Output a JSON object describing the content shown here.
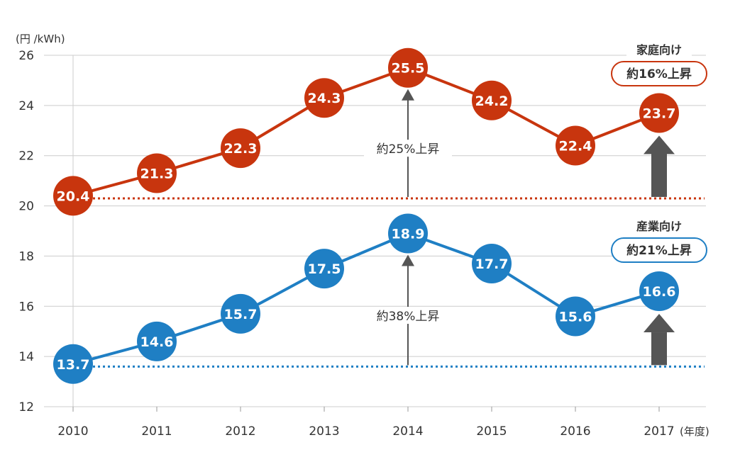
{
  "chart_data": {
    "type": "line",
    "unit_label": "(円 /kWh)",
    "x_unit_label": "(年度)",
    "categories": [
      "2010",
      "2011",
      "2012",
      "2013",
      "2014",
      "2015",
      "2016",
      "2017"
    ],
    "ylim": [
      12,
      26
    ],
    "yticks": [
      12,
      14,
      16,
      18,
      20,
      22,
      24,
      26
    ],
    "grid": true,
    "series": [
      {
        "name": "家庭向け",
        "color": "#c8350e",
        "values": [
          20.4,
          21.3,
          22.3,
          24.3,
          25.5,
          24.2,
          22.4,
          23.7
        ],
        "baseline": 20.3,
        "badge": "約16%上昇",
        "peak_annotation": "約25%上昇"
      },
      {
        "name": "産業向け",
        "color": "#1f7fc4",
        "values": [
          13.7,
          14.6,
          15.7,
          17.5,
          18.9,
          17.7,
          15.6,
          16.6
        ],
        "baseline": 13.6,
        "badge": "約21%上昇",
        "peak_annotation": "約38%上昇"
      }
    ],
    "arrow_color": "#555555",
    "grid_color": "#cccccc"
  }
}
